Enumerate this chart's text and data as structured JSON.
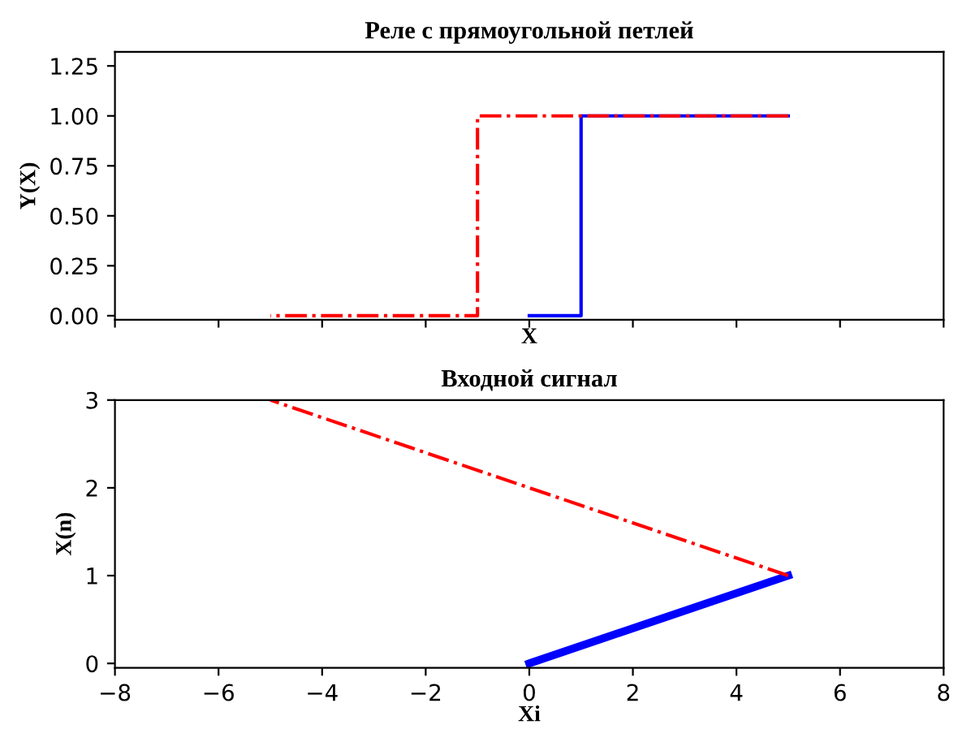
{
  "chart_data": [
    {
      "type": "line",
      "title": "Реле с прямоугольной петлей",
      "xlabel": "X",
      "ylabel": "Y(X)",
      "xlim": [
        -8,
        8
      ],
      "xticks": [
        -8,
        -6,
        -4,
        -2,
        0,
        2,
        4,
        6,
        8
      ],
      "ylim": [
        -0.02,
        1.32
      ],
      "yticks": [
        {
          "value": 0,
          "label": "0.00"
        },
        0.25,
        {
          "value": 0.5,
          "label": "0.50"
        },
        0.75,
        {
          "value": 1,
          "label": "1.00"
        },
        1.25
      ],
      "tick_labels": "y",
      "grid": false,
      "legend": false,
      "series": [
        {
          "color": "#0000ff",
          "line_style": "solid",
          "x": [
            0,
            1,
            1,
            5
          ],
          "values": [
            0,
            0,
            1,
            1
          ]
        },
        {
          "color": "#ff0000",
          "line_style": "dashdot",
          "x": [
            5,
            -1,
            -1,
            -5
          ],
          "values": [
            1,
            1,
            0,
            0
          ]
        }
      ]
    },
    {
      "type": "line",
      "title": "Входной сигнал",
      "xlabel": "Xi",
      "ylabel": "X(n)",
      "xlim": [
        -8,
        8
      ],
      "xticks": [
        -8,
        -6,
        -4,
        -2,
        0,
        2,
        4,
        6,
        8
      ],
      "ylim": [
        -0.05,
        3
      ],
      "yticks": [
        0,
        1,
        2,
        3
      ],
      "grid": false,
      "legend": false,
      "series": [
        {
          "color": "#0000ff",
          "line_style": "solid",
          "x": [
            0,
            5
          ],
          "values": [
            0,
            1
          ]
        },
        {
          "color": "#ff0000",
          "line_style": "dashdot",
          "x": [
            5,
            -5
          ],
          "values": [
            1,
            3
          ]
        }
      ]
    }
  ]
}
